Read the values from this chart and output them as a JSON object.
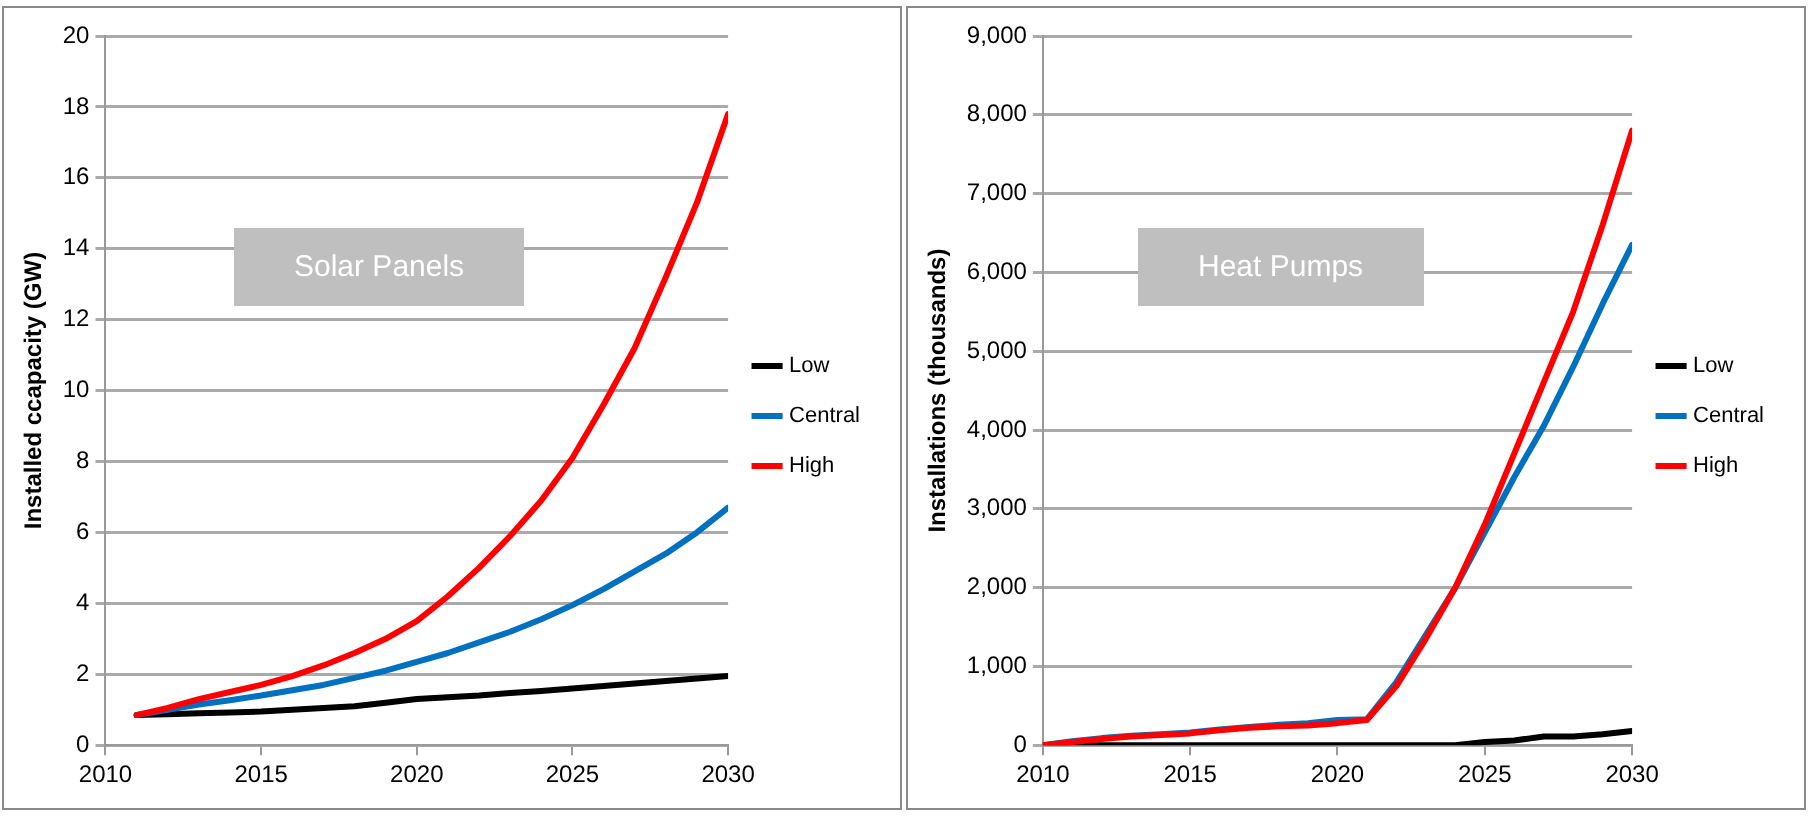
{
  "chart_data": [
    {
      "type": "line",
      "title": "Solar Panels",
      "ylabel": "Installed ccapacity (GW)",
      "xlim": [
        2010,
        2030
      ],
      "xticks": [
        2010,
        2015,
        2020,
        2025,
        2030
      ],
      "ylim": [
        0,
        20
      ],
      "yticks": [
        0,
        2,
        4,
        6,
        8,
        10,
        12,
        14,
        16,
        18,
        20
      ],
      "grid": "y",
      "legend": "right",
      "marker": "none",
      "line_style": "solid",
      "x": [
        2011,
        2012,
        2013,
        2014,
        2015,
        2016,
        2017,
        2018,
        2019,
        2020,
        2021,
        2022,
        2023,
        2024,
        2025,
        2026,
        2027,
        2028,
        2029,
        2030
      ],
      "series": [
        {
          "name": "Low",
          "color": "#000000",
          "values": [
            0.85,
            0.87,
            0.9,
            0.92,
            0.95,
            1.0,
            1.05,
            1.1,
            1.2,
            1.3,
            1.35,
            1.4,
            1.47,
            1.53,
            1.6,
            1.67,
            1.74,
            1.81,
            1.88,
            1.95
          ]
        },
        {
          "name": "Central",
          "color": "#0070c0",
          "values": [
            0.85,
            1.0,
            1.15,
            1.27,
            1.4,
            1.55,
            1.7,
            1.9,
            2.1,
            2.35,
            2.6,
            2.9,
            3.2,
            3.55,
            3.95,
            4.4,
            4.9,
            5.4,
            6.0,
            6.7
          ]
        },
        {
          "name": "High",
          "color": "#ff0000",
          "values": [
            0.85,
            1.05,
            1.3,
            1.5,
            1.7,
            1.95,
            2.25,
            2.6,
            3.0,
            3.5,
            4.2,
            5.0,
            5.9,
            6.9,
            8.1,
            9.6,
            11.2,
            13.2,
            15.3,
            17.8
          ]
        }
      ]
    },
    {
      "type": "line",
      "title": "Heat Pumps",
      "ylabel": "Installations (thousands)",
      "xlim": [
        2010,
        2030
      ],
      "xticks": [
        2010,
        2015,
        2020,
        2025,
        2030
      ],
      "ylim": [
        0,
        9000
      ],
      "yticks": [
        0,
        {
          "value": 1000,
          "label": "1,000"
        },
        {
          "value": 2000,
          "label": "2,000"
        },
        {
          "value": 3000,
          "label": "3,000"
        },
        {
          "value": 4000,
          "label": "4,000"
        },
        {
          "value": 5000,
          "label": "5,000"
        },
        {
          "value": 6000,
          "label": "6,000"
        },
        {
          "value": 7000,
          "label": "7,000"
        },
        {
          "value": 8000,
          "label": "8,000"
        },
        {
          "value": 9000,
          "label": "9,000"
        }
      ],
      "grid": "y",
      "legend": "right",
      "marker": "none",
      "line_style": "solid",
      "x": [
        2010,
        2011,
        2012,
        2013,
        2014,
        2015,
        2016,
        2017,
        2018,
        2019,
        2020,
        2021,
        2022,
        2023,
        2024,
        2025,
        2026,
        2027,
        2028,
        2029,
        2030
      ],
      "series": [
        {
          "name": "Low",
          "color": "#000000",
          "values": [
            0,
            0,
            0,
            0,
            0,
            0,
            0,
            0,
            0,
            0,
            0,
            0,
            0,
            0,
            0,
            40,
            60,
            110,
            110,
            140,
            180
          ]
        },
        {
          "name": "Central",
          "color": "#0070c0",
          "values": [
            0,
            50,
            90,
            120,
            140,
            160,
            200,
            230,
            260,
            280,
            320,
            330,
            800,
            1400,
            2000,
            2700,
            3400,
            4050,
            4800,
            5600,
            6350
          ]
        },
        {
          "name": "High",
          "color": "#ff0000",
          "values": [
            0,
            40,
            80,
            110,
            130,
            150,
            190,
            220,
            240,
            250,
            280,
            320,
            750,
            1350,
            2000,
            2800,
            3700,
            4600,
            5500,
            6600,
            7800
          ]
        }
      ]
    }
  ]
}
